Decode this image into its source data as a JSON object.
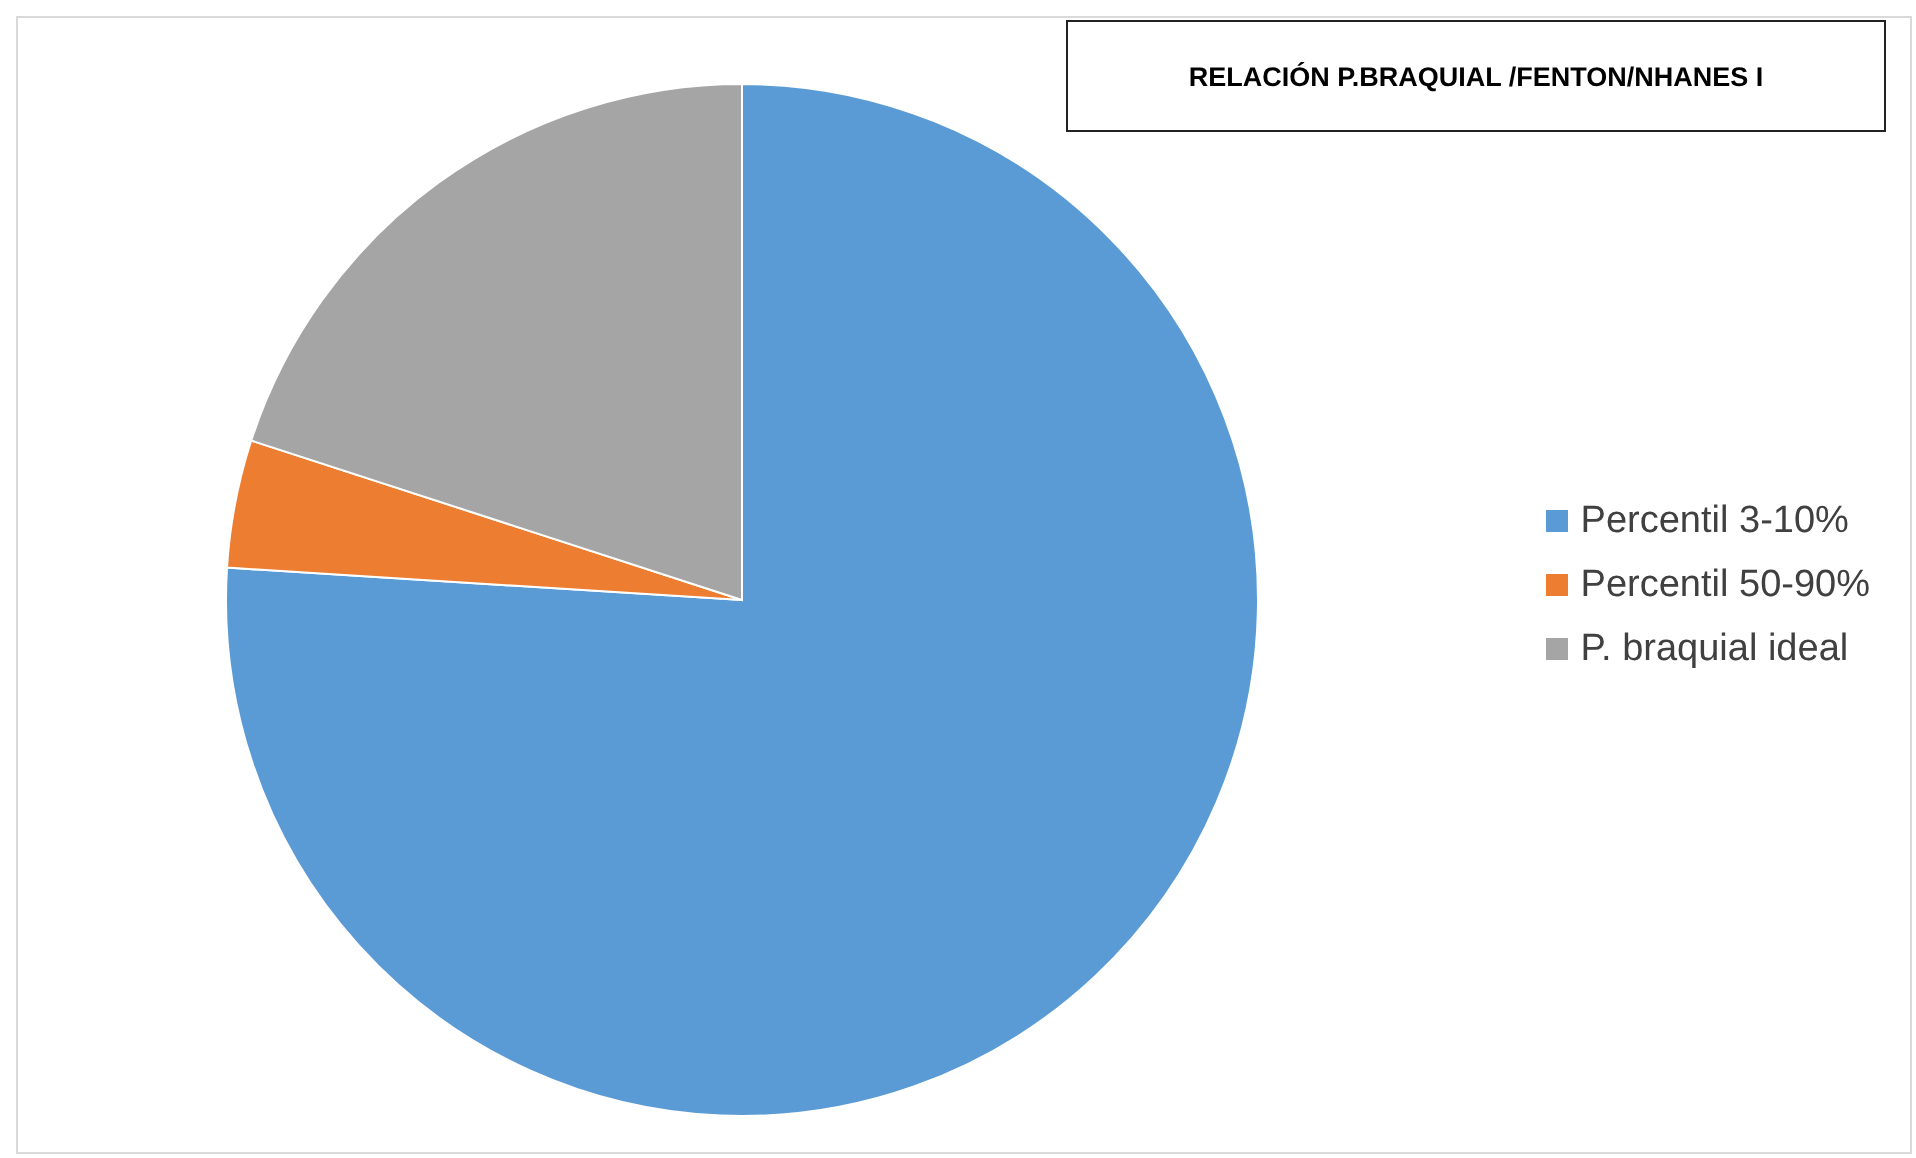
{
  "chart_data": {
    "type": "pie",
    "title": "RELACIÓN P.BRAQUIAL /FENTON/NHANES I",
    "categories": [
      "Percentil 3-10%",
      "Percentil 50-90%",
      "P. braquial ideal"
    ],
    "values": [
      76,
      4,
      20
    ],
    "colors": [
      "#5b9bd5",
      "#ed7d31",
      "#a5a5a5"
    ],
    "legend": "right"
  }
}
